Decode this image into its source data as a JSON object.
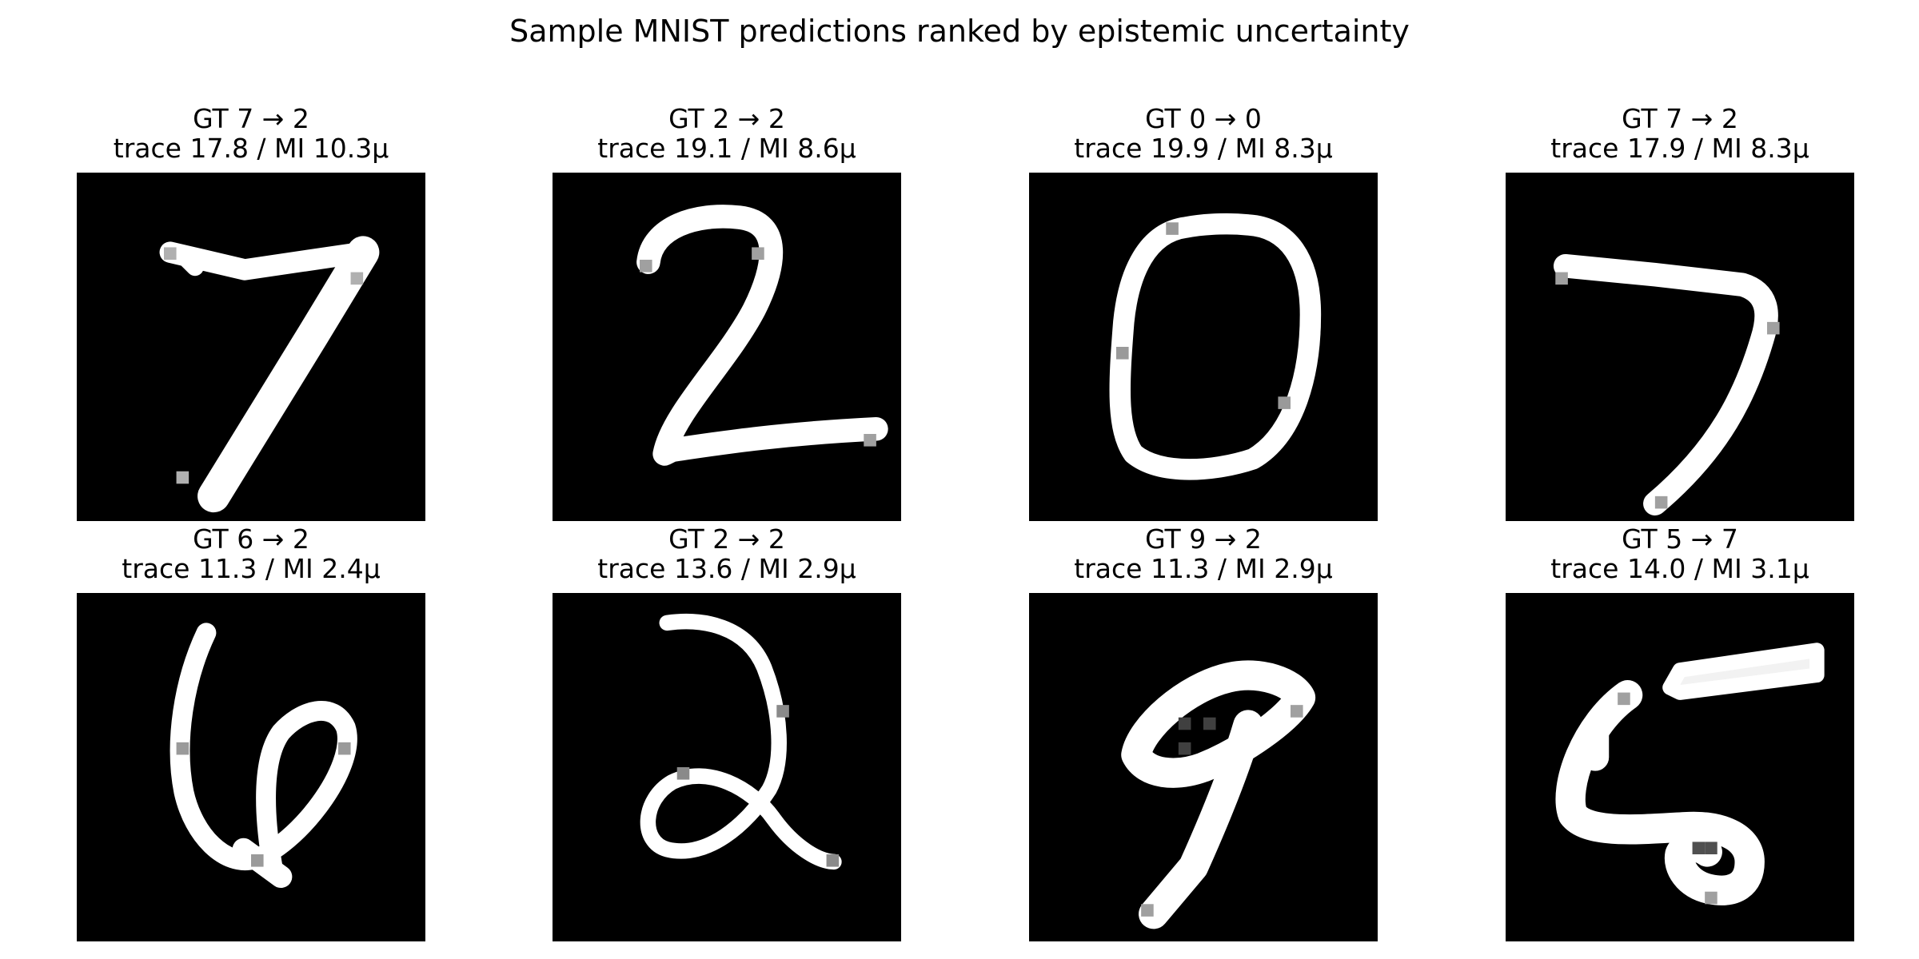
{
  "figure": {
    "title": "Sample MNIST predictions ranked by epistemic uncertainty"
  },
  "panels": [
    {
      "line1": "GT 7 → 2",
      "line2": "trace 17.8 / MI 10.3µ",
      "digit": "7",
      "variant": "a"
    },
    {
      "line1": "GT 2 → 2",
      "line2": "trace 19.1 / MI 8.6µ",
      "digit": "2",
      "variant": "a"
    },
    {
      "line1": "GT 0 → 0",
      "line2": "trace 19.9 / MI 8.3µ",
      "digit": "0",
      "variant": "a"
    },
    {
      "line1": "GT 7 → 2",
      "line2": "trace 17.9 / MI 8.3µ",
      "digit": "7",
      "variant": "b"
    },
    {
      "line1": "GT 6 → 2",
      "line2": "trace 11.3 / MI 2.4µ",
      "digit": "6",
      "variant": "a"
    },
    {
      "line1": "GT 2 → 2",
      "line2": "trace 13.6 / MI 2.9µ",
      "digit": "2",
      "variant": "b"
    },
    {
      "line1": "GT 9 → 2",
      "line2": "trace 11.3 / MI 2.9µ",
      "digit": "9",
      "variant": "a"
    },
    {
      "line1": "GT 5 → 7",
      "line2": "trace 14.0 / MI 3.1µ",
      "digit": "5",
      "variant": "a"
    }
  ]
}
